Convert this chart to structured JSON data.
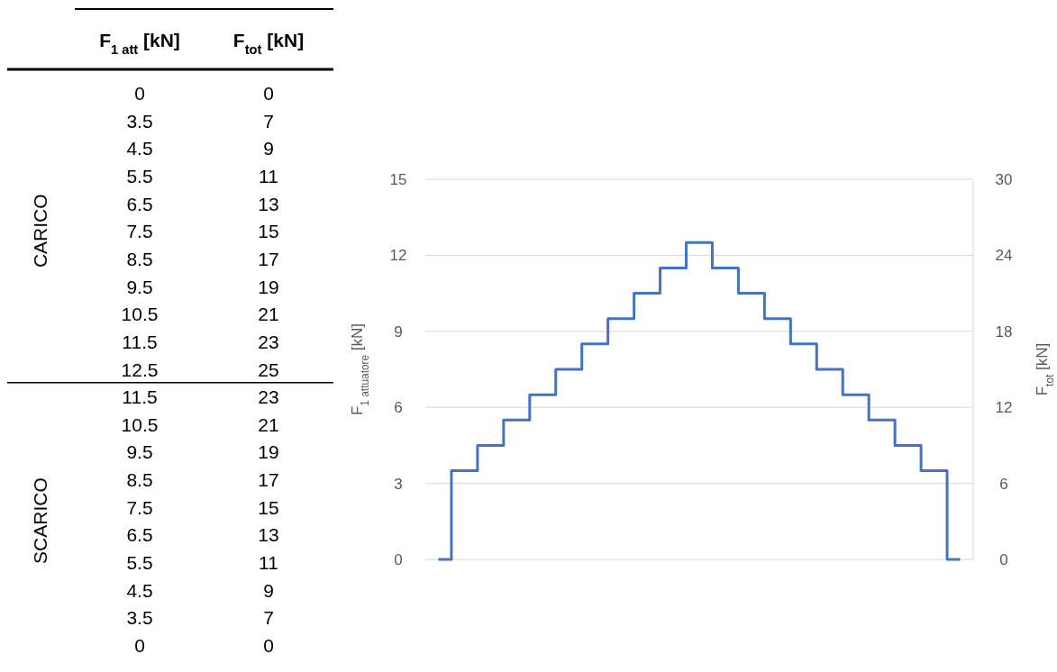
{
  "chart_data": [
    {
      "type": "heatmap",
      "annotations": [
        "CARICO",
        "SCARICO"
      ],
      "categories": [
        "F$_{1 att}$ [kN]",
        "F$_{tot}$ [kN]"
      ],
      "y_categories": [
        null,
        null,
        null,
        null,
        null,
        null,
        null,
        null,
        null,
        null,
        null,
        null,
        null,
        null,
        null,
        null,
        null,
        null,
        null,
        null,
        null
      ],
      "cells": [
        [
          0,
          0
        ],
        [
          3.5,
          7
        ],
        [
          4.5,
          9
        ],
        [
          5.5,
          11
        ],
        [
          6.5,
          13
        ],
        [
          7.5,
          15
        ],
        [
          8.5,
          17
        ],
        [
          9.5,
          19
        ],
        [
          10.5,
          21
        ],
        [
          11.5,
          23
        ],
        [
          12.5,
          25
        ],
        [
          11.5,
          23
        ],
        [
          10.5,
          21
        ],
        [
          9.5,
          19
        ],
        [
          8.5,
          17
        ],
        [
          7.5,
          15
        ],
        [
          6.5,
          13
        ],
        [
          5.5,
          11
        ],
        [
          4.5,
          9
        ],
        [
          3.5,
          7
        ],
        [
          0,
          0
        ]
      ],
      "data_labels": true
    },
    {
      "type": "step",
      "ylabel": "F$_{1 attuatore}$ [kN]",
      "y2label": "F$_{tot}$ [kN]",
      "categories": [
        null,
        null,
        null,
        null,
        null,
        null,
        null,
        null,
        null,
        null,
        null,
        null,
        null,
        null,
        null,
        null,
        null,
        null,
        null,
        null,
        null
      ],
      "series": [
        {
          "color": "#4472c4",
          "values": [
            0,
            3.5,
            4.5,
            5.5,
            6.5,
            7.5,
            8.5,
            9.5,
            10.5,
            11.5,
            12.5,
            11.5,
            10.5,
            9.5,
            8.5,
            7.5,
            6.5,
            5.5,
            4.5,
            3.5,
            0
          ]
        }
      ],
      "ylim": [
        0,
        15
      ],
      "yticks": [
        0,
        3,
        6,
        9,
        12,
        15
      ],
      "y2lim": [
        0,
        30
      ],
      "y2ticks": [
        0,
        6,
        12,
        18,
        24,
        30
      ],
      "grid": "y"
    }
  ]
}
